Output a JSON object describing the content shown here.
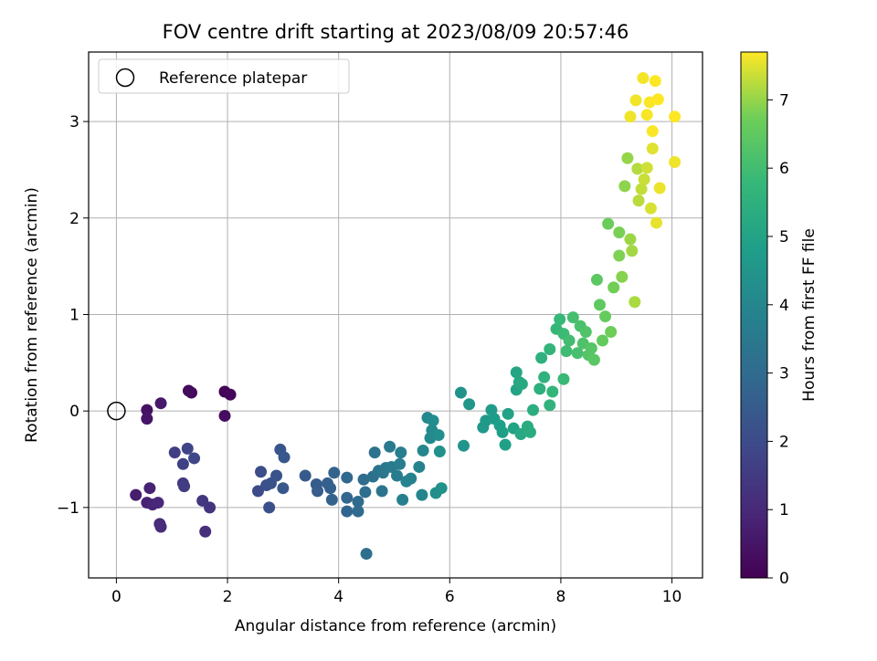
{
  "chart_data": {
    "type": "scatter",
    "title": "FOV centre drift starting at 2023/08/09 20:57:46",
    "xlabel": "Angular distance from reference (arcmin)",
    "ylabel": "Rotation from reference (arcmin)",
    "xlim": [
      -0.5,
      10.55
    ],
    "ylim": [
      -1.73,
      3.72
    ],
    "xticks": [
      0,
      2,
      4,
      6,
      8,
      10
    ],
    "yticks": [
      -1,
      0,
      1,
      2,
      3
    ],
    "xtick_labels": [
      "0",
      "2",
      "4",
      "6",
      "8",
      "10"
    ],
    "ytick_labels": [
      "−1",
      "0",
      "1",
      "2",
      "3"
    ],
    "grid": true,
    "legend": {
      "placement": "top-left",
      "label": "Reference platepar"
    },
    "reference_point": {
      "x": 0,
      "y": 0
    },
    "colorbar": {
      "label": "Hours from first FF file",
      "colormap": "viridis",
      "range": [
        0,
        7.7
      ],
      "ticks": [
        0,
        1,
        2,
        3,
        4,
        5,
        6,
        7
      ],
      "tick_labels": [
        "0",
        "1",
        "2",
        "3",
        "4",
        "5",
        "6",
        "7"
      ]
    },
    "points": [
      {
        "x": 1.95,
        "y": 0.2,
        "c": 0.1
      },
      {
        "x": 2.05,
        "y": 0.17,
        "c": 0.15
      },
      {
        "x": 1.35,
        "y": 0.19,
        "c": 0.2
      },
      {
        "x": 1.3,
        "y": 0.21,
        "c": 0.25
      },
      {
        "x": 1.95,
        "y": -0.05,
        "c": 0.3
      },
      {
        "x": 0.55,
        "y": 0.01,
        "c": 0.4
      },
      {
        "x": 0.55,
        "y": -0.08,
        "c": 0.5
      },
      {
        "x": 0.8,
        "y": 0.08,
        "c": 0.6
      },
      {
        "x": 0.35,
        "y": -0.87,
        "c": 0.7
      },
      {
        "x": 0.55,
        "y": -0.95,
        "c": 0.8
      },
      {
        "x": 0.6,
        "y": -0.8,
        "c": 0.85
      },
      {
        "x": 0.65,
        "y": -0.97,
        "c": 0.9
      },
      {
        "x": 0.75,
        "y": -0.95,
        "c": 1.0
      },
      {
        "x": 0.78,
        "y": -1.17,
        "c": 1.05
      },
      {
        "x": 0.8,
        "y": -1.2,
        "c": 1.1
      },
      {
        "x": 1.6,
        "y": -1.25,
        "c": 1.2
      },
      {
        "x": 1.68,
        "y": -1.0,
        "c": 1.3
      },
      {
        "x": 1.55,
        "y": -0.93,
        "c": 1.4
      },
      {
        "x": 1.2,
        "y": -0.75,
        "c": 1.5
      },
      {
        "x": 1.22,
        "y": -0.78,
        "c": 1.55
      },
      {
        "x": 1.05,
        "y": -0.43,
        "c": 1.6
      },
      {
        "x": 1.2,
        "y": -0.55,
        "c": 1.7
      },
      {
        "x": 1.28,
        "y": -0.39,
        "c": 1.8
      },
      {
        "x": 1.4,
        "y": -0.49,
        "c": 1.9
      },
      {
        "x": 2.55,
        "y": -0.83,
        "c": 2.0
      },
      {
        "x": 2.6,
        "y": -0.63,
        "c": 2.05
      },
      {
        "x": 2.7,
        "y": -0.77,
        "c": 2.1
      },
      {
        "x": 2.75,
        "y": -1.0,
        "c": 2.15
      },
      {
        "x": 2.78,
        "y": -0.75,
        "c": 2.2
      },
      {
        "x": 2.88,
        "y": -0.67,
        "c": 2.25
      },
      {
        "x": 2.95,
        "y": -0.4,
        "c": 2.3
      },
      {
        "x": 3.02,
        "y": -0.48,
        "c": 2.35
      },
      {
        "x": 3.0,
        "y": -0.8,
        "c": 2.4
      },
      {
        "x": 3.4,
        "y": -0.67,
        "c": 2.45
      },
      {
        "x": 3.6,
        "y": -0.76,
        "c": 2.5
      },
      {
        "x": 3.62,
        "y": -0.83,
        "c": 2.55
      },
      {
        "x": 3.8,
        "y": -0.75,
        "c": 2.6
      },
      {
        "x": 3.85,
        "y": -0.8,
        "c": 2.65
      },
      {
        "x": 3.88,
        "y": -0.92,
        "c": 2.7
      },
      {
        "x": 3.92,
        "y": -0.64,
        "c": 2.75
      },
      {
        "x": 4.15,
        "y": -1.04,
        "c": 2.8
      },
      {
        "x": 4.15,
        "y": -0.9,
        "c": 2.85
      },
      {
        "x": 4.15,
        "y": -0.69,
        "c": 2.9
      },
      {
        "x": 4.35,
        "y": -1.04,
        "c": 2.95
      },
      {
        "x": 4.35,
        "y": -0.94,
        "c": 3.0
      },
      {
        "x": 4.45,
        "y": -0.71,
        "c": 3.05
      },
      {
        "x": 4.48,
        "y": -0.84,
        "c": 3.1
      },
      {
        "x": 4.5,
        "y": -1.48,
        "c": 3.15
      },
      {
        "x": 4.62,
        "y": -0.68,
        "c": 3.2
      },
      {
        "x": 4.65,
        "y": -0.43,
        "c": 3.25
      },
      {
        "x": 4.72,
        "y": -0.62,
        "c": 3.3
      },
      {
        "x": 4.78,
        "y": -0.83,
        "c": 3.35
      },
      {
        "x": 4.8,
        "y": -0.64,
        "c": 3.4
      },
      {
        "x": 4.85,
        "y": -0.59,
        "c": 3.45
      },
      {
        "x": 4.92,
        "y": -0.37,
        "c": 3.5
      },
      {
        "x": 4.95,
        "y": -0.58,
        "c": 3.55
      },
      {
        "x": 5.05,
        "y": -0.67,
        "c": 3.6
      },
      {
        "x": 5.1,
        "y": -0.55,
        "c": 3.65
      },
      {
        "x": 5.12,
        "y": -0.43,
        "c": 3.7
      },
      {
        "x": 5.15,
        "y": -0.92,
        "c": 3.75
      },
      {
        "x": 5.22,
        "y": -0.73,
        "c": 3.8
      },
      {
        "x": 5.3,
        "y": -0.7,
        "c": 3.85
      },
      {
        "x": 5.45,
        "y": -0.58,
        "c": 3.9
      },
      {
        "x": 5.5,
        "y": -0.87,
        "c": 3.95
      },
      {
        "x": 5.52,
        "y": -0.41,
        "c": 4.0
      },
      {
        "x": 5.6,
        "y": -0.07,
        "c": 4.05
      },
      {
        "x": 5.65,
        "y": -0.28,
        "c": 4.1
      },
      {
        "x": 5.68,
        "y": -0.2,
        "c": 4.15
      },
      {
        "x": 5.7,
        "y": -0.1,
        "c": 4.2
      },
      {
        "x": 5.75,
        "y": -0.85,
        "c": 4.25
      },
      {
        "x": 5.8,
        "y": -0.25,
        "c": 4.3
      },
      {
        "x": 5.82,
        "y": -0.42,
        "c": 4.35
      },
      {
        "x": 5.85,
        "y": -0.8,
        "c": 4.4
      },
      {
        "x": 6.2,
        "y": 0.19,
        "c": 4.45
      },
      {
        "x": 6.25,
        "y": -0.36,
        "c": 4.5
      },
      {
        "x": 6.35,
        "y": 0.07,
        "c": 4.55
      },
      {
        "x": 6.6,
        "y": -0.17,
        "c": 4.6
      },
      {
        "x": 6.65,
        "y": -0.1,
        "c": 4.65
      },
      {
        "x": 6.75,
        "y": 0.01,
        "c": 4.7
      },
      {
        "x": 6.8,
        "y": -0.08,
        "c": 4.75
      },
      {
        "x": 6.9,
        "y": -0.15,
        "c": 4.8
      },
      {
        "x": 6.95,
        "y": -0.22,
        "c": 4.85
      },
      {
        "x": 7.0,
        "y": -0.35,
        "c": 4.9
      },
      {
        "x": 7.05,
        "y": -0.03,
        "c": 4.95
      },
      {
        "x": 7.15,
        "y": -0.18,
        "c": 5.0
      },
      {
        "x": 7.2,
        "y": 0.22,
        "c": 5.05
      },
      {
        "x": 7.2,
        "y": 0.4,
        "c": 5.1
      },
      {
        "x": 7.25,
        "y": 0.3,
        "c": 5.15
      },
      {
        "x": 7.28,
        "y": -0.24,
        "c": 5.2
      },
      {
        "x": 7.3,
        "y": 0.28,
        "c": 5.25
      },
      {
        "x": 7.4,
        "y": -0.16,
        "c": 5.3
      },
      {
        "x": 7.45,
        "y": -0.22,
        "c": 5.35
      },
      {
        "x": 7.5,
        "y": 0.01,
        "c": 5.4
      },
      {
        "x": 7.62,
        "y": 0.23,
        "c": 5.45
      },
      {
        "x": 7.65,
        "y": 0.55,
        "c": 5.5
      },
      {
        "x": 7.7,
        "y": 0.35,
        "c": 5.55
      },
      {
        "x": 7.8,
        "y": 0.06,
        "c": 5.6
      },
      {
        "x": 7.8,
        "y": 0.64,
        "c": 5.65
      },
      {
        "x": 7.85,
        "y": 0.2,
        "c": 5.7
      },
      {
        "x": 7.92,
        "y": 0.85,
        "c": 5.75
      },
      {
        "x": 7.98,
        "y": 0.95,
        "c": 5.8
      },
      {
        "x": 8.05,
        "y": 0.33,
        "c": 5.85
      },
      {
        "x": 8.05,
        "y": 0.8,
        "c": 5.9
      },
      {
        "x": 8.1,
        "y": 0.62,
        "c": 5.95
      },
      {
        "x": 8.15,
        "y": 0.73,
        "c": 6.0
      },
      {
        "x": 8.22,
        "y": 0.97,
        "c": 6.05
      },
      {
        "x": 8.3,
        "y": 0.6,
        "c": 6.1
      },
      {
        "x": 8.35,
        "y": 0.88,
        "c": 6.15
      },
      {
        "x": 8.4,
        "y": 0.7,
        "c": 6.2
      },
      {
        "x": 8.45,
        "y": 0.82,
        "c": 6.25
      },
      {
        "x": 8.5,
        "y": 0.58,
        "c": 6.3
      },
      {
        "x": 8.55,
        "y": 0.65,
        "c": 6.35
      },
      {
        "x": 8.6,
        "y": 0.53,
        "c": 6.4
      },
      {
        "x": 8.65,
        "y": 1.36,
        "c": 6.45
      },
      {
        "x": 8.7,
        "y": 1.1,
        "c": 6.5
      },
      {
        "x": 8.75,
        "y": 0.73,
        "c": 6.55
      },
      {
        "x": 8.8,
        "y": 0.98,
        "c": 6.6
      },
      {
        "x": 8.85,
        "y": 1.94,
        "c": 6.65
      },
      {
        "x": 8.9,
        "y": 0.82,
        "c": 6.7
      },
      {
        "x": 8.95,
        "y": 1.28,
        "c": 6.75
      },
      {
        "x": 9.05,
        "y": 1.85,
        "c": 6.8
      },
      {
        "x": 9.05,
        "y": 1.61,
        "c": 6.85
      },
      {
        "x": 9.1,
        "y": 1.39,
        "c": 6.9
      },
      {
        "x": 9.15,
        "y": 2.33,
        "c": 6.95
      },
      {
        "x": 9.2,
        "y": 2.62,
        "c": 7.0
      },
      {
        "x": 9.25,
        "y": 1.78,
        "c": 7.05
      },
      {
        "x": 9.28,
        "y": 1.66,
        "c": 7.1
      },
      {
        "x": 9.33,
        "y": 1.13,
        "c": 7.15
      },
      {
        "x": 9.38,
        "y": 2.51,
        "c": 7.2
      },
      {
        "x": 9.4,
        "y": 2.18,
        "c": 7.25
      },
      {
        "x": 9.45,
        "y": 2.3,
        "c": 7.3
      },
      {
        "x": 9.5,
        "y": 2.4,
        "c": 7.35
      },
      {
        "x": 9.55,
        "y": 2.52,
        "c": 7.4
      },
      {
        "x": 9.62,
        "y": 2.1,
        "c": 7.45
      },
      {
        "x": 9.65,
        "y": 2.72,
        "c": 7.5
      },
      {
        "x": 9.72,
        "y": 1.95,
        "c": 7.55
      },
      {
        "x": 9.78,
        "y": 2.31,
        "c": 7.58
      },
      {
        "x": 9.25,
        "y": 3.05,
        "c": 7.6
      },
      {
        "x": 9.35,
        "y": 3.22,
        "c": 7.62
      },
      {
        "x": 9.48,
        "y": 3.45,
        "c": 7.64
      },
      {
        "x": 9.55,
        "y": 3.07,
        "c": 7.66
      },
      {
        "x": 9.6,
        "y": 3.2,
        "c": 7.68
      },
      {
        "x": 9.65,
        "y": 2.9,
        "c": 7.68
      },
      {
        "x": 9.7,
        "y": 3.42,
        "c": 7.7
      },
      {
        "x": 9.75,
        "y": 3.23,
        "c": 7.7
      },
      {
        "x": 10.05,
        "y": 3.05,
        "c": 7.7
      },
      {
        "x": 10.05,
        "y": 2.58,
        "c": 7.6
      }
    ]
  }
}
